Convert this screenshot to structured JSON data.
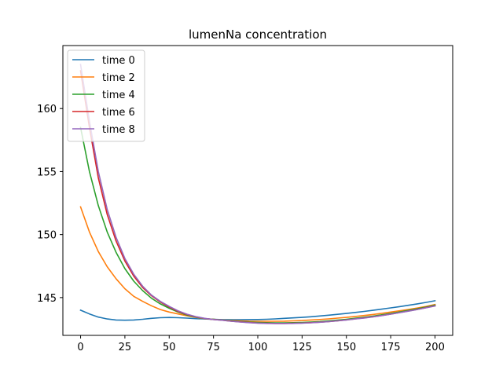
{
  "chart_data": {
    "type": "line",
    "title": "lumenNa concentration",
    "xlabel": "",
    "ylabel": "",
    "xlim": [
      -10,
      210
    ],
    "ylim": [
      142,
      165
    ],
    "xticks": [
      0,
      25,
      50,
      75,
      100,
      125,
      150,
      175,
      200
    ],
    "yticks": [
      145,
      150,
      155,
      160
    ],
    "grid": false,
    "legend_position": "upper-left",
    "x": [
      0,
      5,
      10,
      15,
      20,
      25,
      30,
      35,
      40,
      45,
      50,
      55,
      60,
      65,
      70,
      75,
      80,
      85,
      90,
      95,
      100,
      105,
      110,
      115,
      120,
      125,
      130,
      135,
      140,
      145,
      150,
      155,
      160,
      165,
      170,
      175,
      180,
      185,
      190,
      195,
      200
    ],
    "series": [
      {
        "name": "time 0",
        "color": "#1f77b4",
        "values": [
          144.0,
          143.7,
          143.45,
          143.3,
          143.22,
          143.2,
          143.22,
          143.28,
          143.35,
          143.4,
          143.42,
          143.4,
          143.37,
          143.33,
          143.3,
          143.27,
          143.25,
          143.24,
          143.24,
          143.25,
          143.26,
          143.28,
          143.31,
          143.35,
          143.39,
          143.43,
          143.48,
          143.54,
          143.6,
          143.67,
          143.74,
          143.82,
          143.9,
          143.99,
          144.08,
          144.18,
          144.28,
          144.39,
          144.5,
          144.62,
          144.75
        ]
      },
      {
        "name": "time 2",
        "color": "#ff7f0e",
        "values": [
          152.2,
          150.2,
          148.65,
          147.45,
          146.5,
          145.7,
          145.1,
          144.7,
          144.35,
          144.05,
          143.85,
          143.7,
          143.55,
          143.43,
          143.33,
          143.27,
          143.22,
          143.18,
          143.15,
          143.13,
          143.12,
          143.12,
          143.12,
          143.13,
          143.15,
          143.18,
          143.22,
          143.26,
          143.31,
          143.37,
          143.43,
          143.5,
          143.58,
          143.66,
          143.75,
          143.85,
          143.95,
          144.06,
          144.17,
          144.3,
          144.45
        ]
      },
      {
        "name": "time 4",
        "color": "#2ca02c",
        "values": [
          158.5,
          155.0,
          152.3,
          150.2,
          148.6,
          147.3,
          146.3,
          145.55,
          144.95,
          144.5,
          144.15,
          143.85,
          143.6,
          143.45,
          143.33,
          143.27,
          143.22,
          143.15,
          143.1,
          143.06,
          143.03,
          143.01,
          143.0,
          143.0,
          143.01,
          143.03,
          143.06,
          143.1,
          143.15,
          143.21,
          143.28,
          143.36,
          143.44,
          143.53,
          143.63,
          143.74,
          143.86,
          143.98,
          144.11,
          144.25,
          144.4
        ]
      },
      {
        "name": "time 6",
        "color": "#d62728",
        "values": [
          163.0,
          158.5,
          154.5,
          151.6,
          149.5,
          147.9,
          146.7,
          145.8,
          145.15,
          144.65,
          144.25,
          143.9,
          143.65,
          143.47,
          143.34,
          143.26,
          143.2,
          143.13,
          143.07,
          143.02,
          142.98,
          142.96,
          142.95,
          142.95,
          142.96,
          142.98,
          143.01,
          143.05,
          143.1,
          143.16,
          143.23,
          143.31,
          143.39,
          143.48,
          143.58,
          143.69,
          143.81,
          143.93,
          144.06,
          144.2,
          144.35
        ]
      },
      {
        "name": "time 8",
        "color": "#9467bd",
        "values": [
          163.5,
          159.0,
          155.0,
          152.0,
          149.8,
          148.1,
          146.85,
          145.9,
          145.2,
          144.7,
          144.3,
          143.95,
          143.68,
          143.49,
          143.35,
          143.26,
          143.2,
          143.12,
          143.06,
          143.01,
          142.97,
          142.95,
          142.94,
          142.94,
          142.95,
          142.97,
          143.0,
          143.04,
          143.09,
          143.15,
          143.22,
          143.3,
          143.38,
          143.47,
          143.57,
          143.68,
          143.8,
          143.92,
          144.05,
          144.19,
          144.33
        ]
      }
    ]
  }
}
